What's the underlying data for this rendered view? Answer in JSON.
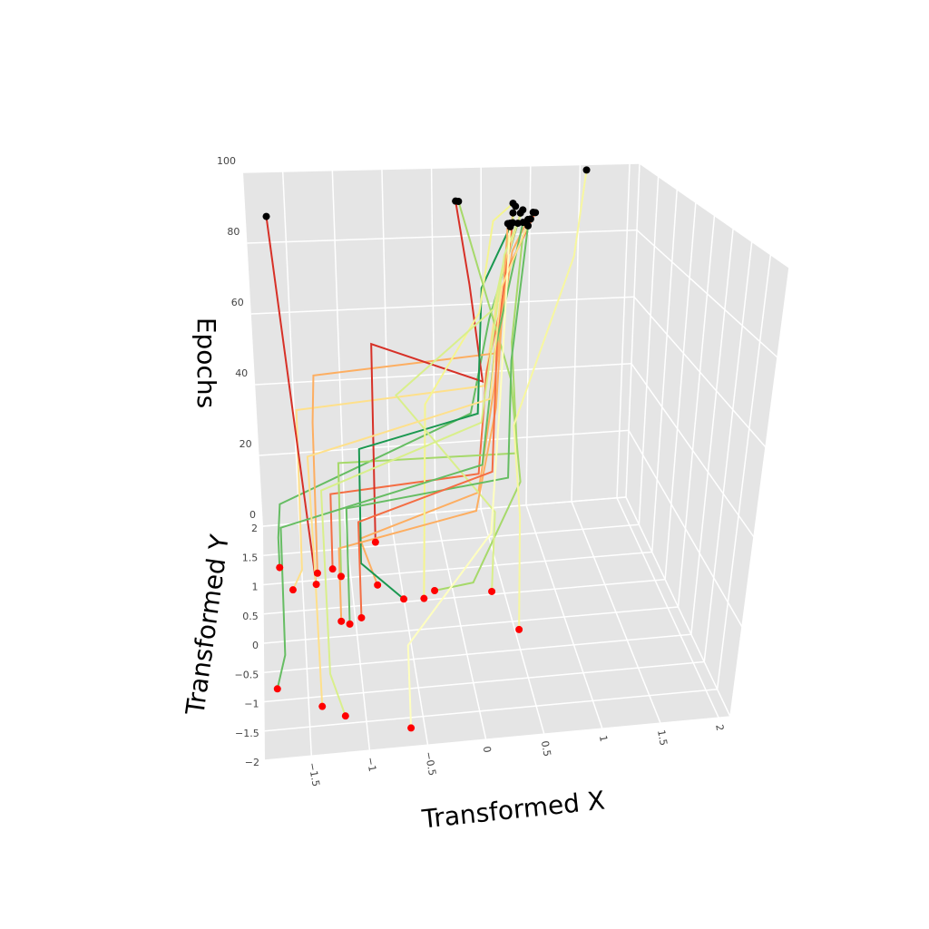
{
  "chart_data": {
    "type": "line3d",
    "title": "",
    "xlabel": "Transformed X",
    "ylabel": "Transformed Y",
    "zlabel": "Epochs",
    "xlim": [
      -1.9,
      2.1
    ],
    "ylim": [
      -2,
      2
    ],
    "zlim": [
      0,
      100
    ],
    "x_ticks": [
      "−1.5",
      "−1",
      "−0.5",
      "0",
      "0.5",
      "1",
      "1.5",
      "2"
    ],
    "x_tick_values": [
      -1.5,
      -1,
      -0.5,
      0,
      0.5,
      1,
      1.5,
      2
    ],
    "y_ticks": [
      "−2",
      "−1.5",
      "−1",
      "−0.5",
      "0",
      "0.5",
      "1",
      "1.5",
      "2"
    ],
    "y_tick_values": [
      -2,
      -1.5,
      -1,
      -0.5,
      0,
      0.5,
      1,
      1.5,
      2
    ],
    "z_ticks": [
      "0",
      "20",
      "40",
      "60",
      "80",
      "100"
    ],
    "z_tick_values": [
      0,
      20,
      40,
      60,
      80,
      100
    ],
    "grid": true,
    "pane_color": "#e5e5e5",
    "start_marker_color": "#ff0000",
    "end_marker_color": "#000000",
    "series": [
      {
        "color": "#66bd63",
        "points": [
          [
            -1.73,
            1.27,
            0
          ],
          [
            -1.73,
            1.27,
            8
          ],
          [
            -1.7,
            1.4,
            15
          ],
          [
            0.3,
            1.5,
            35
          ],
          [
            0.5,
            1.6,
            60
          ],
          [
            0.8,
            1.7,
            86
          ]
        ]
      },
      {
        "color": "#fee08b",
        "points": [
          [
            -1.6,
            0.87,
            0
          ],
          [
            -1.5,
            1.0,
            3
          ],
          [
            -1.5,
            1.0,
            45
          ],
          [
            0.4,
            1.3,
            45
          ],
          [
            0.6,
            1.6,
            70
          ],
          [
            0.85,
            1.8,
            88
          ]
        ]
      },
      {
        "color": "#d73027",
        "points": [
          [
            -1.36,
            0.93,
            0
          ],
          [
            -1.7,
            1.6,
            91
          ]
        ]
      },
      {
        "color": "#fdae61",
        "points": [
          [
            -1.34,
            1.12,
            0
          ],
          [
            -1.34,
            1.12,
            40
          ],
          [
            -1.3,
            1.5,
            48
          ],
          [
            0.5,
            1.2,
            55
          ],
          [
            0.7,
            1.5,
            80
          ],
          [
            0.9,
            1.7,
            87
          ]
        ]
      },
      {
        "color": "#f46d43",
        "points": [
          [
            -1.18,
            1.17,
            0
          ],
          [
            -1.18,
            1.17,
            20
          ],
          [
            0.3,
            1.0,
            25
          ],
          [
            0.4,
            1.2,
            50
          ],
          [
            0.7,
            1.6,
            75
          ],
          [
            1.0,
            1.8,
            88
          ]
        ]
      },
      {
        "color": "#a6d96a",
        "points": [
          [
            -1.1,
            1.03,
            0
          ],
          [
            -1.1,
            1.03,
            30
          ],
          [
            0.6,
            0.6,
            35
          ],
          [
            0.6,
            1.0,
            60
          ],
          [
            0.8,
            1.5,
            84
          ],
          [
            0.9,
            1.6,
            88
          ]
        ]
      },
      {
        "color": "#d73027",
        "points": [
          [
            -0.7,
            1.57,
            0
          ],
          [
            -0.7,
            1.57,
            55
          ],
          [
            0.4,
            1.4,
            45
          ],
          [
            0.3,
            1.6,
            70
          ],
          [
            0.2,
            1.8,
            92
          ]
        ]
      },
      {
        "color": "#fdae61",
        "points": [
          [
            -0.74,
            0.83,
            0
          ],
          [
            -0.9,
            1.0,
            10
          ],
          [
            0.3,
            1.0,
            20
          ],
          [
            0.5,
            1.3,
            45
          ],
          [
            0.75,
            1.7,
            89
          ]
        ]
      },
      {
        "color": "#1a9850",
        "points": [
          [
            -0.5,
            0.55,
            0
          ],
          [
            -0.9,
            0.9,
            5
          ],
          [
            -0.9,
            0.9,
            35
          ],
          [
            0.3,
            1.1,
            40
          ],
          [
            0.4,
            1.5,
            70
          ],
          [
            0.7,
            1.6,
            86
          ]
        ]
      },
      {
        "color": "#f5f590",
        "points": [
          [
            -0.3,
            0.53,
            0
          ],
          [
            -0.3,
            0.53,
            50
          ],
          [
            0.4,
            1.6,
            62
          ],
          [
            0.6,
            1.9,
            85
          ],
          [
            0.8,
            1.9,
            90
          ]
        ]
      },
      {
        "color": "#a6d96a",
        "points": [
          [
            -0.18,
            0.65,
            0
          ],
          [
            0.2,
            0.6,
            2
          ],
          [
            0.6,
            0.4,
            30
          ],
          [
            0.6,
            1.0,
            50
          ],
          [
            0.25,
            1.9,
            91
          ]
        ]
      },
      {
        "color": "#d9ef8b",
        "points": [
          [
            0.38,
            0.55,
            0
          ],
          [
            0.4,
            0.6,
            20
          ],
          [
            -0.5,
            1.2,
            45
          ],
          [
            0.5,
            1.4,
            65
          ],
          [
            0.8,
            1.8,
            90
          ]
        ]
      },
      {
        "color": "#f7f7a0",
        "points": [
          [
            0.54,
            -0.15,
            0
          ],
          [
            0.55,
            0.1,
            25
          ],
          [
            0.6,
            0.8,
            40
          ],
          [
            1.4,
            1.8,
            75
          ],
          [
            1.5,
            1.8,
            100
          ]
        ]
      },
      {
        "color": "#fdae61",
        "points": [
          [
            -1.14,
            0.26,
            0
          ],
          [
            -1.14,
            0.5,
            15
          ],
          [
            0.2,
            0.5,
            22
          ],
          [
            0.5,
            1.2,
            40
          ],
          [
            0.7,
            1.7,
            86
          ]
        ]
      },
      {
        "color": "#66bd63",
        "points": [
          [
            -1.06,
            0.2,
            0
          ],
          [
            -1.06,
            0.5,
            25
          ],
          [
            0.5,
            0.5,
            30
          ],
          [
            0.6,
            1.0,
            55
          ],
          [
            0.85,
            1.5,
            87
          ]
        ]
      },
      {
        "color": "#f46d43",
        "points": [
          [
            -0.94,
            0.29,
            0
          ],
          [
            -0.94,
            0.6,
            20
          ],
          [
            0.4,
            0.8,
            28
          ],
          [
            0.5,
            1.2,
            60
          ],
          [
            0.7,
            1.5,
            88
          ]
        ]
      },
      {
        "color": "#66bd63",
        "points": [
          [
            -1.78,
            -0.8,
            0
          ],
          [
            -1.7,
            -0.6,
            5
          ],
          [
            -1.7,
            0.6,
            20
          ],
          [
            0.3,
            0.8,
            30
          ],
          [
            0.5,
            1.3,
            55
          ],
          [
            0.8,
            1.5,
            88
          ]
        ]
      },
      {
        "color": "#fee08b",
        "points": [
          [
            -1.38,
            -1.17,
            0
          ],
          [
            -1.38,
            0.5,
            10
          ],
          [
            -1.4,
            1.2,
            30
          ],
          [
            0.4,
            1.0,
            45
          ],
          [
            0.6,
            1.5,
            70
          ],
          [
            0.95,
            1.7,
            89
          ]
        ]
      },
      {
        "color": "#d9ef8b",
        "points": [
          [
            -1.18,
            -1.37,
            0
          ],
          [
            -1.3,
            -1.0,
            5
          ],
          [
            -1.3,
            0.5,
            30
          ],
          [
            0.3,
            0.9,
            40
          ],
          [
            0.6,
            1.4,
            80
          ],
          [
            0.9,
            1.9,
            88
          ]
        ]
      },
      {
        "color": "#ffffbf",
        "points": [
          [
            -0.62,
            -1.68,
            0
          ],
          [
            -0.6,
            -1.0,
            10
          ],
          [
            0.3,
            0.2,
            20
          ],
          [
            0.5,
            1.0,
            45
          ],
          [
            0.7,
            1.6,
            87
          ]
        ]
      }
    ]
  }
}
